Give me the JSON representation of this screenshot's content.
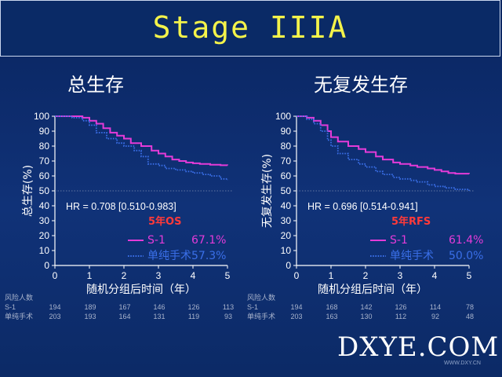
{
  "banner": {
    "title": "Stage IIIA"
  },
  "watermark": {
    "text": "DXYE.COM",
    "sub": "WWW.DXY.CN"
  },
  "colors": {
    "s1": "#e43bd8",
    "surgery": "#3a6fe8",
    "endpoint": "#ff3a3a",
    "background": "#0d2b66",
    "title": "#f4f34a"
  },
  "chart_data": [
    {
      "type": "line",
      "title": "总生存",
      "ylabel": "总生存(%)",
      "xlabel": "随机分组后时间（年）",
      "xlim": [
        0,
        5
      ],
      "ylim": [
        0,
        100
      ],
      "xticks": [
        0,
        1,
        2,
        3,
        4,
        5
      ],
      "yticks": [
        0,
        10,
        20,
        30,
        40,
        50,
        60,
        70,
        80,
        90,
        100
      ],
      "hr_text": "HR = 0.708   [0.510-0.983]",
      "endpoint_label": "5年OS",
      "reference_line": 50,
      "series": [
        {
          "name": "S-1",
          "style": "solid",
          "label_value": "67.1%",
          "x": [
            0,
            0.5,
            0.8,
            1.0,
            1.2,
            1.4,
            1.6,
            1.8,
            2.0,
            2.2,
            2.5,
            2.8,
            3.0,
            3.2,
            3.4,
            3.6,
            3.8,
            4.0,
            4.2,
            4.5,
            4.8,
            5.0
          ],
          "y": [
            100,
            100,
            99,
            97,
            95,
            92,
            89,
            87,
            85,
            82,
            80,
            77,
            75,
            73,
            71,
            70,
            69,
            68.5,
            68,
            67.5,
            67.2,
            67.1
          ]
        },
        {
          "name": "单纯手术",
          "style": "dotted",
          "label_value": "57.3%",
          "x": [
            0,
            0.5,
            0.8,
            1.0,
            1.2,
            1.5,
            1.8,
            2.0,
            2.3,
            2.5,
            2.7,
            3.0,
            3.2,
            3.5,
            3.8,
            4.0,
            4.3,
            4.5,
            4.8,
            5.0
          ],
          "y": [
            100,
            99,
            97,
            94,
            89,
            85,
            82,
            80,
            77,
            73,
            68,
            67,
            65,
            64,
            63,
            62,
            61,
            60,
            58,
            57.3
          ]
        }
      ],
      "risk_table": {
        "header": "风险人数",
        "rows": [
          {
            "label": "S-1",
            "values": [
              194,
              189,
              167,
              146,
              126,
              113
            ]
          },
          {
            "label": "单纯手术",
            "values": [
              203,
              193,
              164,
              131,
              119,
              93
            ]
          }
        ]
      }
    },
    {
      "type": "line",
      "title": "无复发生存",
      "ylabel": "无复发生存(%)",
      "xlabel": "随机分组后时间（年）",
      "xlim": [
        0,
        5
      ],
      "ylim": [
        0,
        100
      ],
      "xticks": [
        0,
        1,
        2,
        3,
        4,
        5
      ],
      "yticks": [
        0,
        10,
        20,
        30,
        40,
        50,
        60,
        70,
        80,
        90,
        100
      ],
      "hr_text": "HR = 0.696 [0.514-0.941]",
      "endpoint_label": "5年RFS",
      "reference_line": 50,
      "series": [
        {
          "name": "S-1",
          "style": "solid",
          "label_value": "61.4%",
          "x": [
            0,
            0.3,
            0.5,
            0.7,
            0.9,
            1.0,
            1.2,
            1.5,
            1.8,
            2.0,
            2.3,
            2.5,
            2.8,
            3.0,
            3.3,
            3.5,
            3.8,
            4.0,
            4.2,
            4.4,
            4.6,
            5.0
          ],
          "y": [
            100,
            99,
            97,
            94,
            90,
            86,
            83,
            80,
            78,
            76,
            73,
            71,
            69,
            68,
            67,
            66,
            65,
            64,
            63,
            62,
            61.5,
            61.4
          ]
        },
        {
          "name": "单纯手术",
          "style": "dotted",
          "label_value": "50.0%",
          "x": [
            0,
            0.3,
            0.5,
            0.7,
            0.9,
            1.0,
            1.2,
            1.5,
            1.8,
            2.0,
            2.3,
            2.5,
            2.8,
            3.0,
            3.3,
            3.5,
            3.8,
            4.0,
            4.3,
            4.6,
            5.0
          ],
          "y": [
            100,
            98,
            95,
            90,
            84,
            80,
            75,
            71,
            68,
            66,
            63,
            61,
            59,
            58,
            57,
            56,
            54,
            53,
            52,
            51,
            50.0
          ]
        }
      ],
      "risk_table": {
        "header": "风险人数",
        "rows": [
          {
            "label": "S-1",
            "values": [
              194,
              168,
              142,
              126,
              114,
              78
            ]
          },
          {
            "label": "单纯手术",
            "values": [
              203,
              163,
              130,
              112,
              92,
              48
            ]
          }
        ]
      }
    }
  ]
}
